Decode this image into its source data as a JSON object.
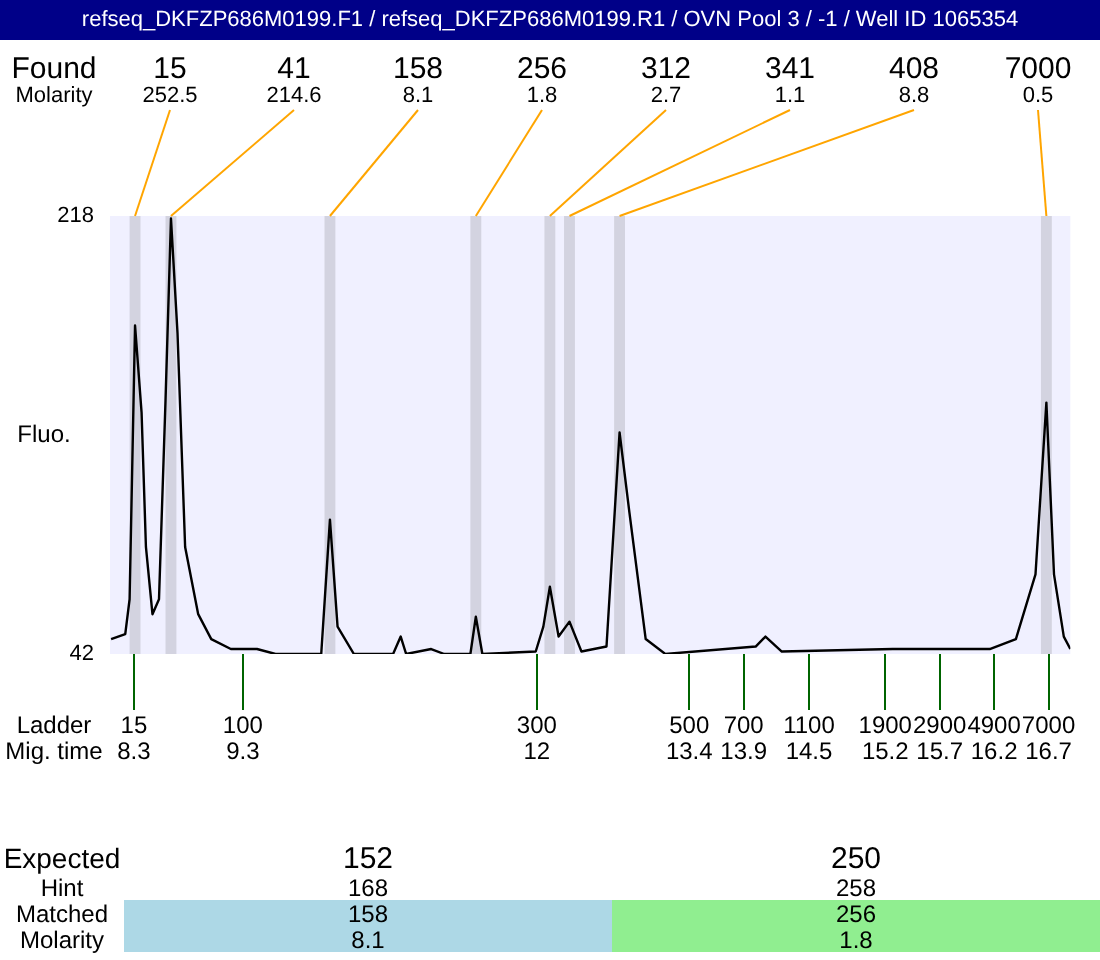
{
  "chart_data": [
    {
      "type": "line",
      "title": "refseq_DKFZP686M0199.F1 / refseq_DKFZP686M0199.R1 / OVN Pool 3 / -1 / Well ID 1065354",
      "xlabel": "Mig. time",
      "ylabel": "Fluo.",
      "x": [
        8.09,
        8.22,
        8.26,
        8.31,
        8.37,
        8.41,
        8.47,
        8.53,
        8.59,
        8.64,
        8.7,
        8.77,
        8.89,
        9.01,
        9.19,
        9.43,
        9.6,
        10.02,
        10.1,
        10.17,
        10.32,
        10.68,
        10.75,
        10.8,
        11.03,
        11.15,
        11.39,
        11.44,
        11.5,
        11.99,
        12.06,
        12.12,
        12.2,
        12.3,
        12.41,
        12.64,
        12.76,
        12.85,
        13.0,
        13.18,
        14.01,
        14.1,
        14.25,
        15.27,
        16.16,
        16.4,
        16.58,
        16.68,
        16.75,
        16.84,
        16.9
      ],
      "series": [
        {
          "color": "#000000",
          "values": [
            48,
            50,
            64,
            174,
            139,
            85,
            58,
            64,
            144,
            217,
            171,
            85,
            58,
            48,
            44,
            44,
            42,
            42,
            96,
            53,
            42,
            42,
            49,
            42,
            44,
            42,
            42,
            57,
            42,
            43,
            53,
            69,
            49,
            55,
            43,
            45,
            131,
            99,
            48,
            42,
            45,
            49,
            43,
            44,
            44,
            48,
            74,
            143,
            74,
            49,
            44
          ]
        }
      ],
      "xlim": [
        8.08,
        16.9
      ],
      "ylim": [
        42,
        218
      ],
      "yticks": [
        42,
        218
      ],
      "xticks": [
        8.3,
        9.3,
        12,
        13.4,
        13.9,
        14.5,
        15.2,
        15.7,
        16.2,
        16.7
      ],
      "bands": [
        {
          "axis": "x",
          "from": 8.26,
          "to": 8.36,
          "color": "#d3d3e0"
        },
        {
          "axis": "x",
          "from": 8.59,
          "to": 8.69,
          "color": "#d3d3e0"
        },
        {
          "axis": "x",
          "from": 10.05,
          "to": 10.15,
          "color": "#d3d3e0"
        },
        {
          "axis": "x",
          "from": 11.39,
          "to": 11.49,
          "color": "#d3d3e0"
        },
        {
          "axis": "x",
          "from": 12.07,
          "to": 12.17,
          "color": "#d3d3e0"
        },
        {
          "axis": "x",
          "from": 12.25,
          "to": 12.35,
          "color": "#d3d3e0"
        },
        {
          "axis": "x",
          "from": 12.71,
          "to": 12.81,
          "color": "#d3d3e0"
        },
        {
          "axis": "x",
          "from": 16.63,
          "to": 16.73,
          "color": "#d3d3e0"
        }
      ],
      "annotations": [
        "Found",
        "15",
        "41",
        "158",
        "256",
        "312",
        "341",
        "408",
        "7000",
        "Molarity",
        {
          "text": "252.5",
          "x": 8.31,
          "y": 218
        },
        {
          "text": "214.6",
          "x": 8.64,
          "y": 218
        },
        {
          "text": "8.1",
          "x": 10.1,
          "y": 218
        },
        {
          "text": "1.8",
          "x": 11.44,
          "y": 218
        },
        {
          "text": "2.7",
          "x": 12.12,
          "y": 218
        },
        {
          "text": "1.1",
          "x": 12.3,
          "y": 218
        },
        {
          "text": "8.8",
          "x": 12.76,
          "y": 218
        },
        {
          "text": "0.5",
          "x": 16.68,
          "y": 218
        },
        "Ladder",
        "15",
        "100",
        "300",
        "500",
        "700",
        "1100",
        "1900",
        "2900",
        "4900",
        "7000"
      ],
      "legend": false,
      "grid": false
    },
    {
      "type": "other",
      "annotations": [
        "Expected",
        "152",
        "250",
        "Hint",
        "168",
        "258",
        "Matched",
        "158",
        "256",
        "Molarity",
        "8.1",
        "1.8"
      ],
      "colors": [
        "#add8e6",
        "#90ee90"
      ]
    }
  ]
}
